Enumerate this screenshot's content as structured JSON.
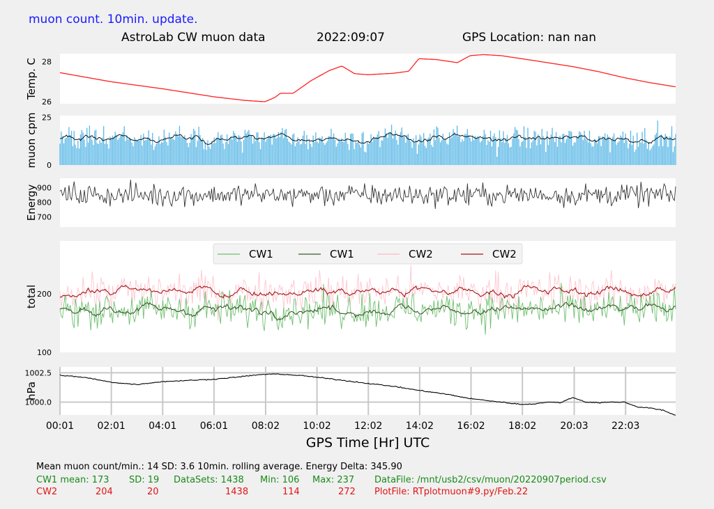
{
  "header": {
    "update_note": "muon count.  10min. update.",
    "title": "AstroLab CW muon data",
    "date": "2022:09:07",
    "gps_location": "GPS Location: nan   nan"
  },
  "chart_data": [
    {
      "type": "line",
      "ylabel": "Temp. C",
      "yticks": [
        "28",
        "26"
      ],
      "ylim": [
        25.9,
        28.4
      ],
      "color": "#ff2020",
      "x_hours": [
        0.02,
        2.0,
        4.0,
        6.0,
        7.2,
        8.0,
        8.4,
        8.6,
        9.1,
        9.8,
        10.5,
        11.0,
        11.5,
        12.0,
        13.0,
        13.6,
        14.0,
        14.7,
        15.5,
        16.0,
        16.5,
        17.2,
        18.5,
        20.0,
        21.0,
        22.0,
        23.0,
        23.97
      ],
      "values": [
        27.45,
        27.0,
        26.65,
        26.25,
        26.07,
        26.0,
        26.22,
        26.42,
        26.42,
        27.05,
        27.55,
        27.78,
        27.4,
        27.35,
        27.42,
        27.52,
        28.15,
        28.1,
        27.95,
        28.3,
        28.35,
        28.3,
        28.05,
        27.75,
        27.5,
        27.2,
        26.95,
        26.75
      ]
    },
    {
      "type": "bar",
      "ylabel": "muon cpm",
      "yticks": [
        "25",
        "0"
      ],
      "ylim": [
        0,
        26
      ],
      "bar_color": "#5bb8e6",
      "rolling_color": "#000000",
      "mean": 14,
      "sd": 3.6
    },
    {
      "type": "line",
      "ylabel": "Energy",
      "yticks": [
        "900",
        "800",
        "700"
      ],
      "ylim": [
        630,
        965
      ],
      "color": "#333333",
      "mean": 850
    },
    {
      "type": "line",
      "ylabel": "total",
      "yticks": [
        "200",
        "100"
      ],
      "ylim": [
        100,
        290
      ],
      "legend": [
        "CW1",
        "CW1",
        "CW2",
        "CW2"
      ],
      "legend_placement": "top-center",
      "series": [
        {
          "name": "CW1",
          "style": "raw",
          "color": "#6ebf6e",
          "mean": 173,
          "sd": 19
        },
        {
          "name": "CW1",
          "style": "rolling",
          "color": "#3a5a2a",
          "mean": 173
        },
        {
          "name": "CW2",
          "style": "raw",
          "color": "#ffb8c4",
          "mean": 204,
          "sd": 20
        },
        {
          "name": "CW2",
          "style": "rolling",
          "color": "#a01818",
          "mean": 204
        }
      ]
    },
    {
      "type": "line",
      "ylabel": "hPa",
      "yticks": [
        "1002.5",
        "1000.0"
      ],
      "ylim": [
        998.9,
        1003.0
      ],
      "grid": true,
      "color": "#000000",
      "x_hours": [
        0.0,
        1.0,
        2.0,
        3.0,
        4.0,
        5.0,
        6.0,
        7.0,
        7.8,
        8.5,
        9.5,
        10.5,
        12.0,
        13.0,
        14.0,
        15.0,
        16.0,
        17.0,
        18.0,
        18.5,
        19.0,
        19.5,
        20.0,
        20.5,
        21.0,
        21.5,
        22.0,
        22.5,
        23.0,
        23.5,
        23.97
      ],
      "values": [
        1002.3,
        1002.1,
        1001.7,
        1001.5,
        1001.75,
        1001.85,
        1001.95,
        1002.15,
        1002.35,
        1002.4,
        1002.25,
        1002.0,
        1001.6,
        1001.35,
        1001.0,
        1000.7,
        1000.3,
        1000.05,
        999.8,
        999.85,
        1000.0,
        999.95,
        1000.4,
        1000.0,
        999.95,
        1000.0,
        1000.0,
        999.6,
        999.5,
        999.3,
        998.9
      ]
    }
  ],
  "x_axis": {
    "label": "GPS Time  [Hr] UTC",
    "tick_labels": [
      "00:01",
      "02:01",
      "04:01",
      "06:01",
      "08:02",
      "10:02",
      "12:02",
      "14:02",
      "16:02",
      "18:02",
      "20:03",
      "22:03"
    ],
    "tick_hours": [
      0.02,
      2.02,
      4.02,
      6.02,
      8.03,
      10.03,
      12.03,
      14.03,
      16.03,
      18.03,
      20.05,
      22.05
    ],
    "range_hours": [
      0.02,
      24.0
    ]
  },
  "stats": {
    "line1": "Mean muon count/min.: 14  SD: 3.6   10min. rolling average.    Energy Delta:  345.90",
    "cw1_label": "CW1 mean: 173",
    "cw1_sd": "SD: 19",
    "cw1_datasets": "DataSets: 1438",
    "cw1_min": "Min: 106",
    "cw1_max": "Max: 237",
    "datafile": "DataFile: /mnt/usb2/csv/muon/20220907period.csv",
    "cw2_label": "CW2",
    "cw2_mean": "204",
    "cw2_sd": "20",
    "cw2_datasets": "1438",
    "cw2_min": "114",
    "cw2_max": "272",
    "plotfile": "PlotFile: RTplotmuon#9.py/Feb.22"
  }
}
